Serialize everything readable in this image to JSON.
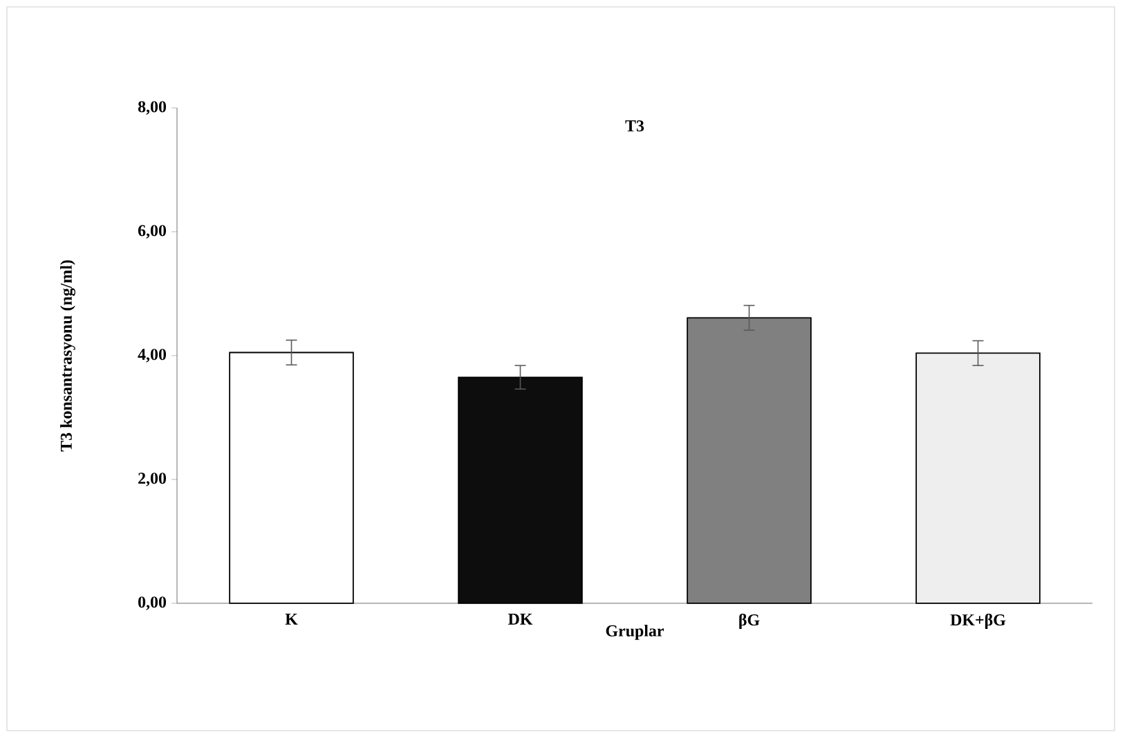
{
  "chart_data": {
    "type": "bar",
    "title": "T3",
    "xlabel": "Gruplar",
    "ylabel": "T3 konsantrasyonu  (ng/ml)",
    "categories": [
      "K",
      "DK",
      "βG",
      "DK+βG"
    ],
    "values": [
      4.05,
      3.65,
      4.61,
      4.04
    ],
    "errors": [
      0.2,
      0.19,
      0.2,
      0.2
    ],
    "colors": [
      "#ffffff",
      "#0d0d0d",
      "#808080",
      "#eeeeee"
    ],
    "ylim": [
      0,
      8
    ],
    "yticks": [
      {
        "value": 0,
        "label": "0,00"
      },
      {
        "value": 2,
        "label": "2,00"
      },
      {
        "value": 4,
        "label": "4,00"
      },
      {
        "value": 6,
        "label": "6,00"
      },
      {
        "value": 8,
        "label": "8,00"
      }
    ],
    "grid": false,
    "legend": false
  }
}
